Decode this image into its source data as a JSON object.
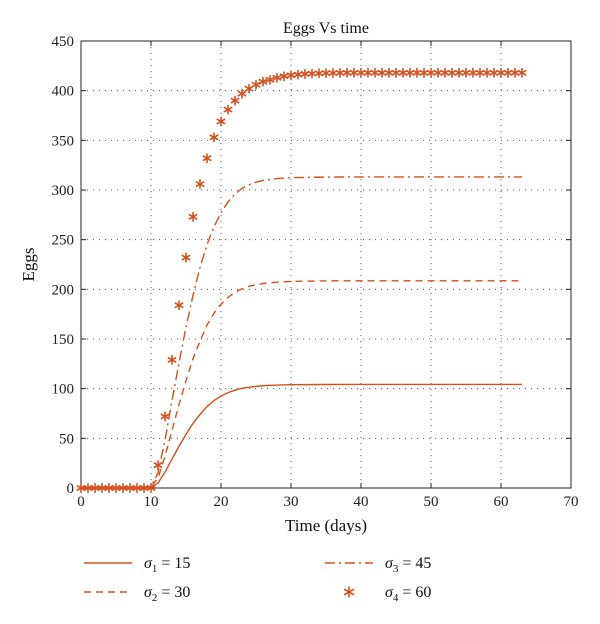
{
  "chart_data": {
    "type": "line",
    "title": "Eggs Vs time",
    "xlabel": "Time (days)",
    "ylabel": "Eggs",
    "xlim": [
      0,
      70
    ],
    "ylim": [
      0,
      450
    ],
    "xticks": [
      0,
      10,
      20,
      30,
      40,
      50,
      60,
      70
    ],
    "yticks": [
      0,
      50,
      100,
      150,
      200,
      250,
      300,
      350,
      400,
      450
    ],
    "grid": true,
    "legend_position": "bottom",
    "color": "#d4501e",
    "series": [
      {
        "name": "σ1 = 15",
        "legend_symbol": "σ",
        "legend_sub": "1",
        "legend_value": "= 15",
        "style": "solid",
        "x": [
          0,
          9,
          10,
          11,
          12,
          13,
          14,
          15,
          16,
          17,
          18,
          19,
          20,
          21,
          22,
          23,
          24,
          25,
          26,
          28,
          30,
          35,
          40,
          50,
          63
        ],
        "y": [
          0,
          0,
          0.5,
          5,
          16,
          29,
          42,
          54,
          65,
          74,
          82,
          88,
          92.5,
          96,
          98.5,
          100.3,
          101.5,
          102.3,
          103,
          103.6,
          104,
          104.2,
          104.3,
          104.3,
          104.3
        ]
      },
      {
        "name": "σ2 = 30",
        "legend_symbol": "σ",
        "legend_sub": "2",
        "legend_value": "= 30",
        "style": "dashed",
        "x": [
          0,
          9,
          10,
          11,
          12,
          13,
          14,
          15,
          16,
          17,
          18,
          19,
          20,
          21,
          22,
          23,
          24,
          25,
          26,
          28,
          30,
          35,
          40,
          50,
          63
        ],
        "y": [
          0,
          0,
          1,
          10,
          32,
          58,
          84,
          108,
          130,
          148,
          164,
          176,
          185,
          192,
          197,
          200.6,
          203,
          204.6,
          205.8,
          207.2,
          208,
          208.5,
          208.6,
          208.6,
          208.6
        ]
      },
      {
        "name": "σ3 = 45",
        "legend_symbol": "σ",
        "legend_sub": "3",
        "legend_value": "= 45",
        "style": "dashdot",
        "x": [
          0,
          9,
          10,
          11,
          12,
          13,
          14,
          15,
          16,
          17,
          18,
          19,
          20,
          21,
          22,
          23,
          24,
          25,
          26,
          28,
          30,
          35,
          40,
          50,
          63
        ],
        "y": [
          0,
          0,
          1.5,
          15,
          48,
          88,
          126,
          162,
          194,
          222,
          245,
          263,
          277,
          288,
          296,
          301.5,
          305.2,
          307.8,
          309.6,
          311.5,
          312.5,
          313,
          313.2,
          313.2,
          313.2
        ]
      },
      {
        "name": "σ4 = 60",
        "legend_symbol": "σ",
        "legend_sub": "4",
        "legend_value": "= 60",
        "style": "markers",
        "x": [
          0,
          1,
          2,
          3,
          4,
          5,
          6,
          7,
          8,
          9,
          10,
          11,
          12,
          13,
          14,
          15,
          16,
          17,
          18,
          19,
          20,
          21,
          22,
          23,
          24,
          25,
          26,
          27,
          28,
          29,
          30,
          31,
          32,
          33,
          34,
          35,
          36,
          37,
          38,
          39,
          40,
          41,
          42,
          43,
          44,
          45,
          46,
          47,
          48,
          49,
          50,
          51,
          52,
          53,
          54,
          55,
          56,
          57,
          58,
          59,
          60,
          61,
          62,
          63
        ],
        "y": [
          0,
          0,
          0,
          0,
          0,
          0,
          0,
          0,
          0,
          0,
          0,
          23,
          72,
          129,
          184,
          232,
          273,
          306,
          332,
          353,
          369,
          381,
          390,
          397,
          402,
          406,
          409,
          411,
          413,
          414.5,
          415.5,
          416.2,
          416.8,
          417.2,
          417.5,
          417.7,
          417.8,
          417.9,
          418,
          418,
          418,
          418,
          418,
          418,
          418,
          418,
          418,
          418,
          418,
          418,
          418,
          418,
          418,
          418,
          418,
          418,
          418,
          418,
          418,
          418,
          418,
          418,
          418,
          418
        ]
      }
    ]
  }
}
